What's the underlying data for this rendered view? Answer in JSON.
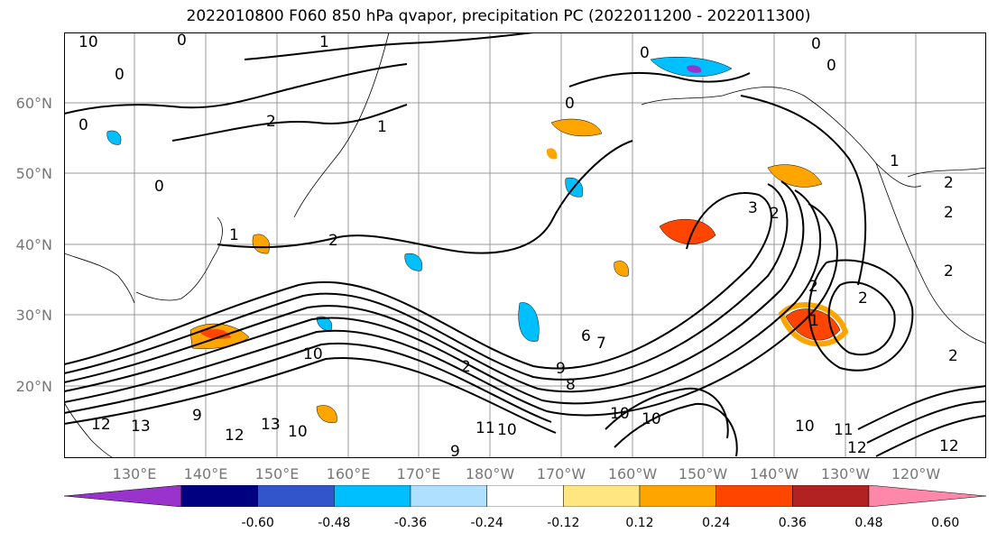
{
  "title": "2022010800 F060 850 hPa qvapor, precipitation PC (2022011200 - 2022011300)",
  "lat_labels": [
    "60°N",
    "50°N",
    "40°N",
    "30°N",
    "20°N"
  ],
  "lon_labels": [
    "130°E",
    "140°E",
    "150°E",
    "160°E",
    "170°E",
    "180°W",
    "170°W",
    "160°W",
    "150°W",
    "140°W",
    "130°W",
    "120°W"
  ],
  "contour_labels": [
    "10",
    "0",
    "1",
    "0",
    "0",
    "0",
    "0",
    "0",
    "2",
    "1",
    "0",
    "2",
    "2",
    "1",
    "3",
    "2",
    "2",
    "2",
    "2",
    "1",
    "2",
    "10",
    "2",
    "9",
    "8",
    "7",
    "6",
    "10",
    "10",
    "12",
    "13",
    "13",
    "12",
    "10",
    "11",
    "10",
    "9",
    "10",
    "11",
    "12",
    "12",
    "9",
    "2",
    "1",
    "0"
  ],
  "colorbar": {
    "colors": [
      "#9933cc",
      "#000080",
      "#3355cc",
      "#00bfff",
      "#b0e0ff",
      "#ffffff",
      "#ffe680",
      "#ffa500",
      "#ff4500",
      "#b22222",
      "#ff88aa"
    ],
    "tick_labels": [
      "-0.60",
      "-0.48",
      "-0.36",
      "-0.24",
      "-0.12",
      "0.12",
      "0.24",
      "0.36",
      "0.48",
      "0.60"
    ]
  }
}
